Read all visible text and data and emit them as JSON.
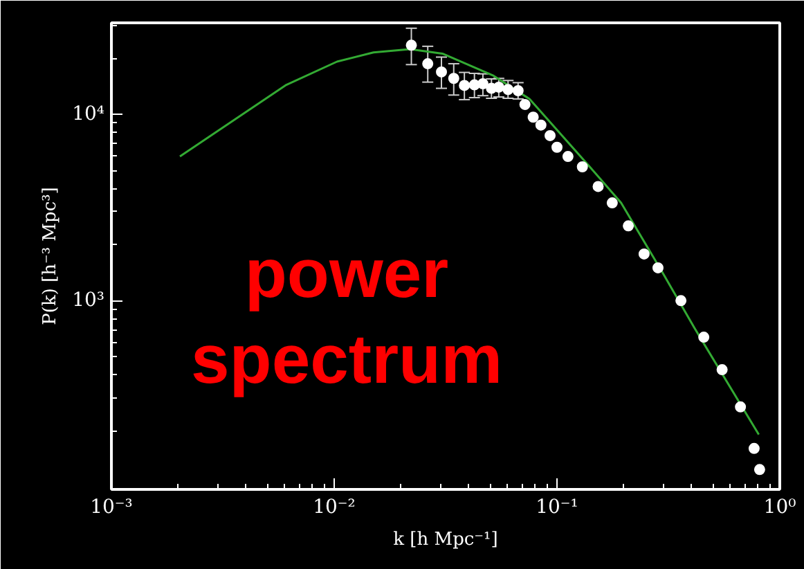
{
  "chart_data": {
    "type": "scatter",
    "xlabel": "k [h Mpc⁻¹]",
    "ylabel": "P(k) [h⁻³ Mpc³]",
    "log": "xy",
    "grid": false,
    "xlim": [
      0.001,
      1
    ],
    "ylim": [
      97,
      31000
    ],
    "xticks": [
      {
        "value": 0.001,
        "label": "10⁻³"
      },
      {
        "value": 0.01,
        "label": "10⁻²"
      },
      {
        "value": 0.1,
        "label": "10⁻¹"
      },
      {
        "value": 1,
        "label": "10⁰"
      }
    ],
    "yticks": [
      {
        "value": 1000,
        "label": "10³"
      },
      {
        "value": 10000,
        "label": "10⁴"
      }
    ],
    "annotations": [
      "power\nspectrum"
    ],
    "series": [
      {
        "type": "line",
        "color": "#33aa33",
        "marker": "none",
        "line_style": "solid",
        "x": [
          0.00203,
          0.0061,
          0.0103,
          0.015,
          0.0219,
          0.0306,
          0.0515,
          0.0753,
          0.139,
          0.194,
          0.297,
          0.414,
          0.805
        ],
        "values": [
          5950,
          14400,
          19200,
          21500,
          22400,
          21200,
          16200,
          12100,
          5300,
          3350,
          1420,
          713,
          191
        ]
      },
      {
        "color": "#ffffff",
        "marker": "circle",
        "x": [
          0.0222,
          0.0263,
          0.0303,
          0.0344,
          0.0384,
          0.0426,
          0.0465,
          0.0508,
          0.0548,
          0.0603,
          0.0669,
          0.0718,
          0.0782,
          0.0847,
          0.0931,
          0.1,
          0.112,
          0.13,
          0.153,
          0.177,
          0.209,
          0.246,
          0.284,
          0.36,
          0.456,
          0.551,
          0.666,
          0.767,
          0.812
        ],
        "values": [
          23500,
          18700,
          16900,
          15600,
          14300,
          14400,
          14600,
          13800,
          14000,
          13600,
          13400,
          11300,
          9660,
          8760,
          7690,
          6660,
          5940,
          5230,
          4100,
          3350,
          2520,
          1780,
          1500,
          1000,
          637,
          426,
          269,
          161,
          124
        ],
        "errors": [
          [
            18500,
            29000
          ],
          [
            14900,
            23200
          ],
          [
            13800,
            20300
          ],
          [
            12700,
            18700
          ],
          [
            12000,
            16800
          ],
          [
            12300,
            16600
          ],
          [
            12600,
            16500
          ],
          [
            12200,
            15500
          ],
          [
            12400,
            15600
          ],
          [
            12200,
            15200
          ],
          [
            12100,
            14800
          ],
          null,
          null,
          null,
          null,
          null,
          null,
          null,
          null,
          null,
          null,
          null,
          null,
          null,
          null,
          null,
          null,
          null,
          null
        ]
      }
    ]
  }
}
